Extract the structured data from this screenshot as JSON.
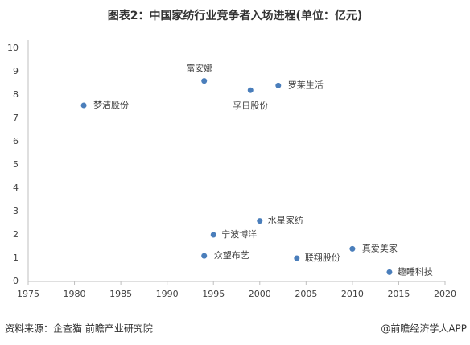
{
  "title": "图表2：中国家纺行业竞争者入场进程(单位：亿元)",
  "chart_data": {
    "type": "scatter",
    "x": [
      1981,
      1994,
      1999,
      2002,
      2000,
      1995,
      1994,
      2004,
      2010,
      2014
    ],
    "values": [
      7.55,
      8.6,
      8.2,
      8.4,
      2.6,
      2.0,
      1.1,
      1.0,
      1.4,
      0.4
    ],
    "point_labels": [
      "梦洁股份",
      "富安娜",
      "孚日股份",
      "罗莱生活",
      "水星家纺",
      "宁波博洋",
      "众望布艺",
      "联翔股份",
      "真爱美家",
      "趣睡科技"
    ],
    "color": "#4a7ebb",
    "xlim": [
      1975,
      2020
    ],
    "xticks": [
      1975,
      1980,
      1985,
      1990,
      1995,
      2000,
      2005,
      2010,
      2015,
      2020
    ],
    "ylim": [
      0,
      10
    ],
    "yticks": [
      0,
      1,
      2,
      3,
      4,
      5,
      6,
      7,
      8,
      9,
      10
    ],
    "grid": false
  },
  "footer": {
    "source": "资料来源：企查猫 前瞻产业研究院",
    "brand": "@前瞻经济学人APP"
  }
}
